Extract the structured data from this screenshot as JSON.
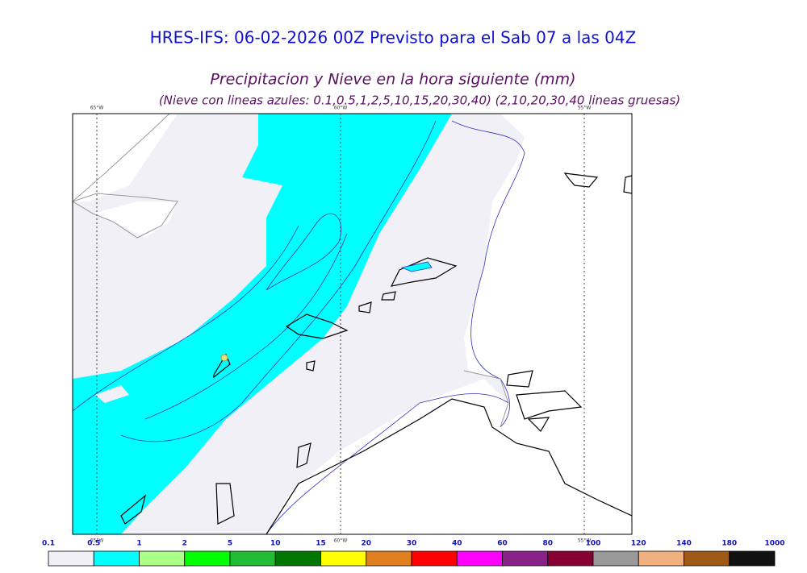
{
  "header": {
    "title": "HRES-IFS: 06-02-2026 00Z Previsto para el Sab 07 a las 04Z",
    "subtitle": "Precipitacion y Nieve en la hora siguiente (mm)",
    "note": "(Nieve con lineas azules: 0.1,0.5,1,2,5,10,15,20,30,40)  (2,10,20,30,40 lineas gruesas)"
  },
  "map": {
    "meridians": [
      "65°W",
      "60°W",
      "55°W"
    ]
  },
  "colorbar": {
    "labels": [
      "0.1",
      "0.5",
      "1",
      "2",
      "5",
      "10",
      "15",
      "20",
      "30",
      "40",
      "60",
      "80",
      "100",
      "120",
      "140",
      "180",
      "1000"
    ],
    "colors": [
      "#f0f0f6",
      "#00ffff",
      "#aaff88",
      "#00ff00",
      "#22bb33",
      "#007700",
      "#ffff00",
      "#e08020",
      "#ff0000",
      "#ff00ff",
      "#882288",
      "#880033",
      "#999999",
      "#f0b080",
      "#a05a18",
      "#111111"
    ]
  }
}
